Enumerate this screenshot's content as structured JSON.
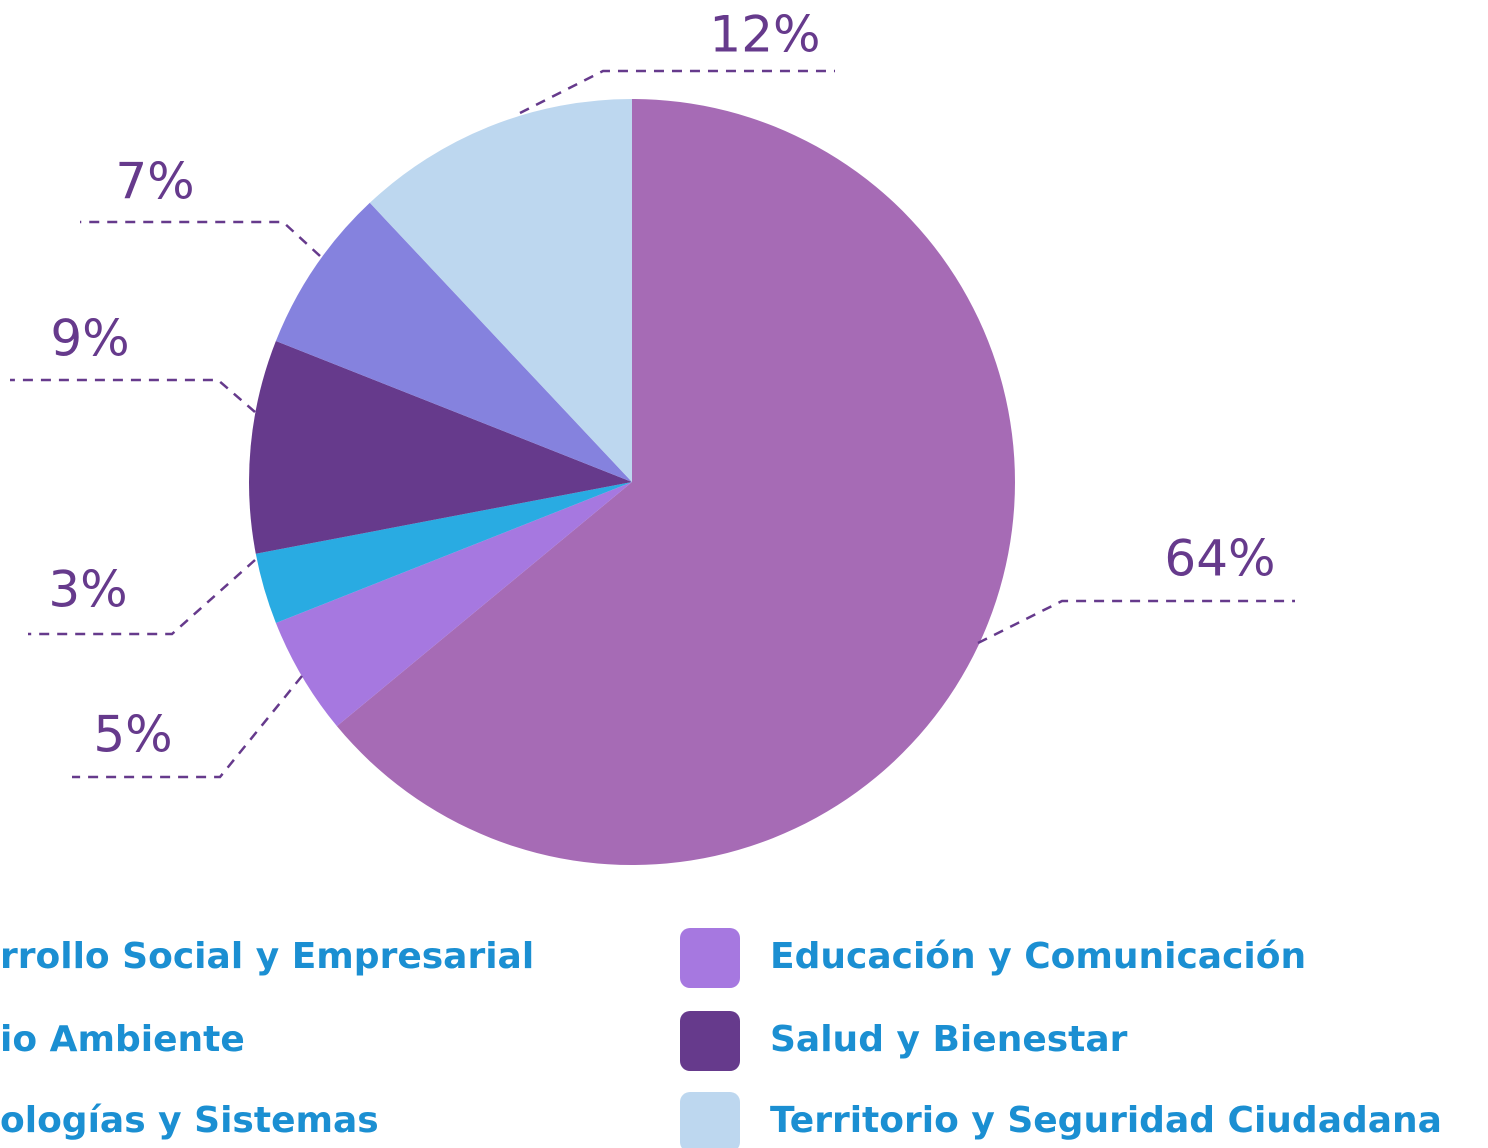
{
  "chart_data": {
    "type": "pie",
    "categories": [
      "rrollo Social y Empresarial",
      "Educación y Comunicación",
      "io Ambiente",
      "Salud y Bienestar",
      "ologías y Sistemas",
      "Territorio y Seguridad Ciudadana"
    ],
    "values": [
      64,
      5,
      3,
      9,
      7,
      12
    ],
    "value_labels": [
      "64%",
      "5%",
      "3%",
      "9%",
      "7%",
      "12%"
    ],
    "colors": [
      "#a66bb5",
      "#a678e0",
      "#29abe2",
      "#663a8c",
      "#8582de",
      "#bdd7ef"
    ],
    "legend": "bottom"
  }
}
